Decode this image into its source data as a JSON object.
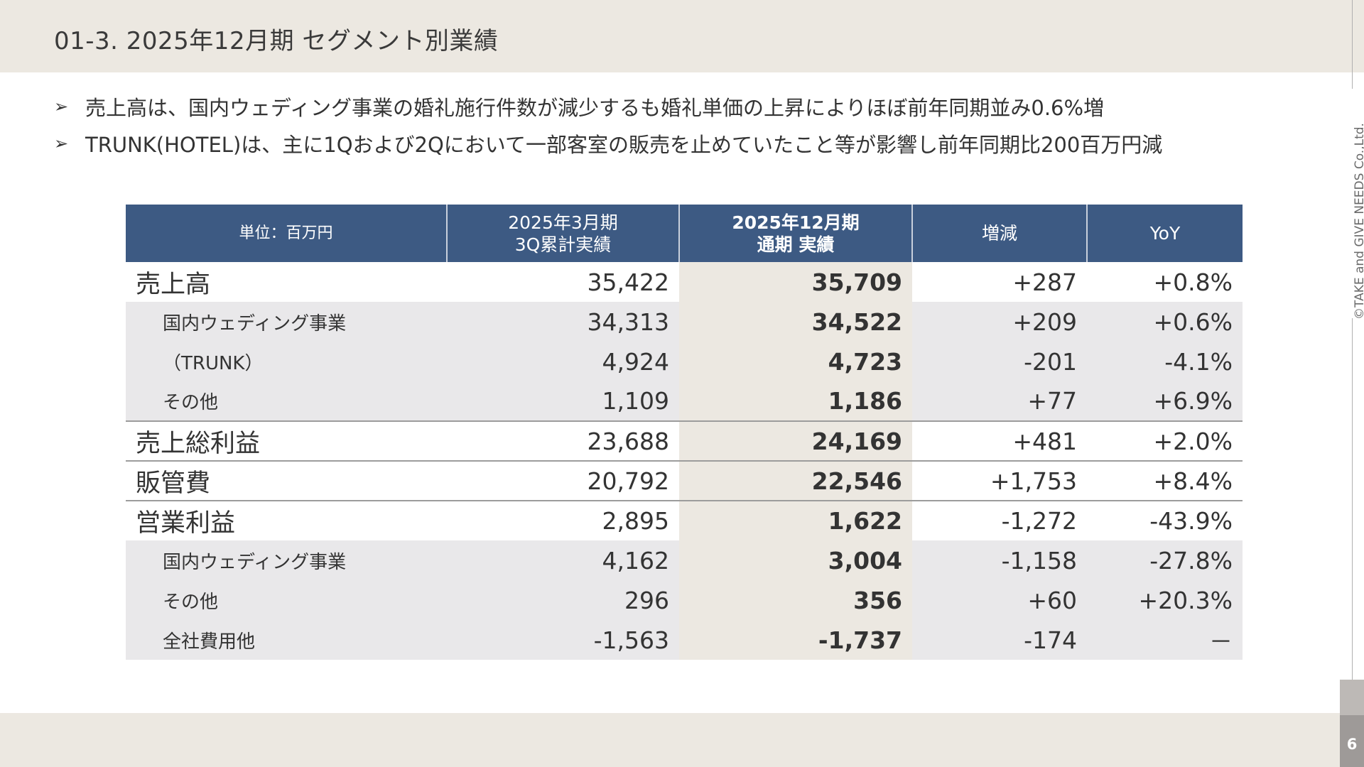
{
  "page": {
    "title": "01-3.  2025年12月期  セグメント別業績",
    "page_number": "6",
    "copyright": "©TAKE and GIVE NEEDS Co.,Ltd."
  },
  "bullets": [
    {
      "marker": "➢",
      "text": "売上高は、国内ウェディング事業の婚礼施行件数が減少するも婚礼単価の上昇によりほぼ前年同期並み0.6%増"
    },
    {
      "marker": "➢",
      "text": "TRUNK(HOTEL)は、主に1Qおよび2Qにおいて一部客室の販売を止めていたこと等が影響し前年同期比200百万円減"
    }
  ],
  "table": {
    "headers": {
      "unit": "単位：百万円",
      "col1_line1": "2025年3月期",
      "col1_line2": "3Q累計実績",
      "col2_line1": "2025年12月期",
      "col2_line2": "通期  実績",
      "col3": "増減",
      "col4": "YoY"
    },
    "rows": [
      {
        "label": "売上高",
        "prev": "35,422",
        "curr": "35,709",
        "diff": "+287",
        "yoy": "+0.8%"
      },
      {
        "label": "国内ウェディング事業",
        "prev": "34,313",
        "curr": "34,522",
        "diff": "+209",
        "yoy": "+0.6%"
      },
      {
        "label": "（TRUNK）",
        "prev": "4,924",
        "curr": "4,723",
        "diff": "-201",
        "yoy": "-4.1%"
      },
      {
        "label": "その他",
        "prev": "1,109",
        "curr": "1,186",
        "diff": "+77",
        "yoy": "+6.9%"
      },
      {
        "label": "売上総利益",
        "prev": "23,688",
        "curr": "24,169",
        "diff": "+481",
        "yoy": "+2.0%"
      },
      {
        "label": "販管費",
        "prev": "20,792",
        "curr": "22,546",
        "diff": "+1,753",
        "yoy": "+8.4%"
      },
      {
        "label": "営業利益",
        "prev": "2,895",
        "curr": "1,622",
        "diff": "-1,272",
        "yoy": "-43.9%"
      },
      {
        "label": "国内ウェディング事業",
        "prev": "4,162",
        "curr": "3,004",
        "diff": "-1,158",
        "yoy": "-27.8%"
      },
      {
        "label": "その他",
        "prev": "296",
        "curr": "356",
        "diff": "+60",
        "yoy": "+20.3%"
      },
      {
        "label": "全社費用他",
        "prev": "-1,563",
        "curr": "-1,737",
        "diff": "-174",
        "yoy": "－"
      }
    ]
  },
  "colors": {
    "header_band": "#ece8e1",
    "table_header": "#3d5a83",
    "highlight_column": "#ece8e1",
    "sub_row": "#e9e8ea"
  }
}
